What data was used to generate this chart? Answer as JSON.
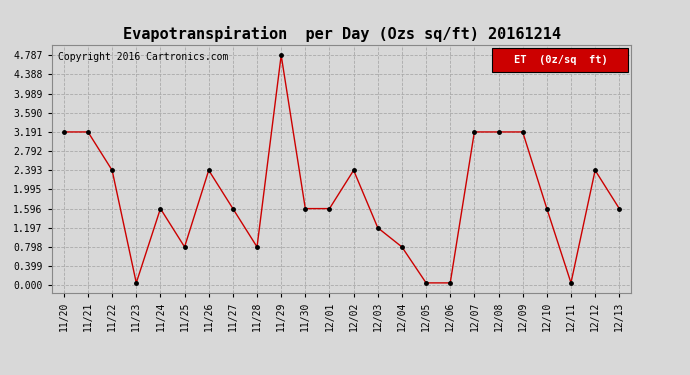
{
  "title": "Evapotranspiration  per Day (Ozs sq/ft) 20161214",
  "copyright": "Copyright 2016 Cartronics.com",
  "legend_label": "ET  (0z/sq  ft)",
  "x_labels": [
    "11/20",
    "11/21",
    "11/22",
    "11/23",
    "11/24",
    "11/25",
    "11/26",
    "11/27",
    "11/28",
    "11/29",
    "11/30",
    "12/01",
    "12/02",
    "12/03",
    "12/04",
    "12/05",
    "12/06",
    "12/07",
    "12/08",
    "12/09",
    "12/10",
    "12/11",
    "12/12",
    "12/13"
  ],
  "y_values": [
    3.191,
    3.191,
    2.393,
    0.05,
    1.596,
    0.798,
    2.393,
    1.596,
    0.798,
    4.787,
    1.596,
    1.596,
    2.393,
    1.197,
    0.798,
    0.05,
    0.05,
    3.191,
    3.191,
    3.191,
    1.596,
    0.05,
    2.393,
    1.596
  ],
  "y_ticks": [
    0.0,
    0.399,
    0.798,
    1.197,
    1.596,
    1.995,
    2.393,
    2.792,
    3.191,
    3.59,
    3.989,
    4.388,
    4.787
  ],
  "line_color": "#cc0000",
  "marker_color": "#000000",
  "background_color": "#d8d8d8",
  "plot_bg_color": "#d8d8d8",
  "grid_color": "#aaaaaa",
  "legend_bg": "#cc0000",
  "legend_text_color": "#ffffff",
  "title_fontsize": 11,
  "copyright_fontsize": 7,
  "tick_fontsize": 7,
  "legend_fontsize": 7.5,
  "ylim": [
    -0.15,
    5.0
  ]
}
